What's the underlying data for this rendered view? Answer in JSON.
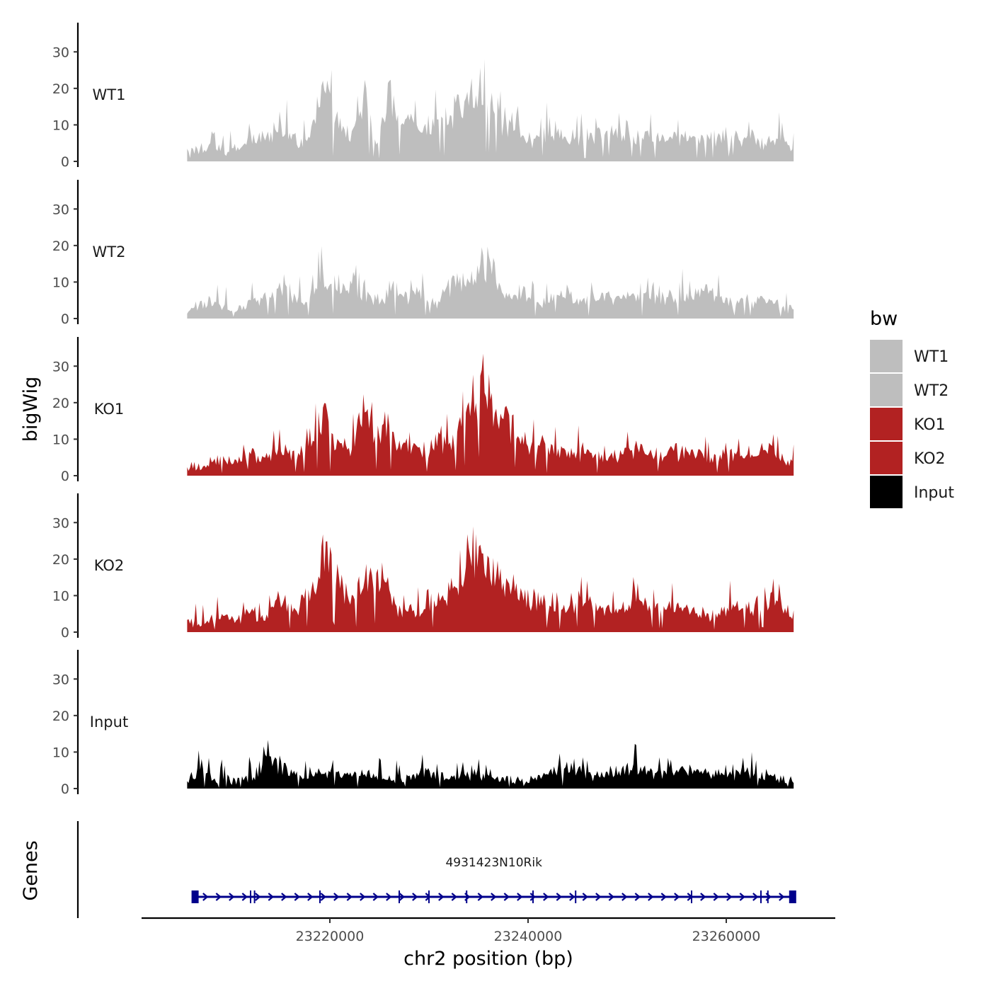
{
  "chart_data": {
    "type": "area",
    "title": "",
    "xlabel": "chr2 position (bp)",
    "ylabel": "bigWig",
    "genes_label": "Genes",
    "xlim": [
      23201000,
      23271000
    ],
    "x_ticks": [
      23220000,
      23240000,
      23260000
    ],
    "x_tick_labels": [
      "23220000",
      "23240000",
      "23260000"
    ],
    "ylim": [
      0,
      38
    ],
    "y_ticks": [
      0,
      10,
      20,
      30
    ],
    "y_tick_labels": [
      "0",
      "10",
      "20",
      "30"
    ],
    "signal_range": [
      23205600,
      23266800
    ],
    "legend": {
      "title": "bw",
      "position": "right",
      "entries": [
        {
          "label": "WT1",
          "color": "#bebebe"
        },
        {
          "label": "WT2",
          "color": "#bebebe"
        },
        {
          "label": "KO1",
          "color": "#b22222"
        },
        {
          "label": "KO2",
          "color": "#b22222"
        },
        {
          "label": "Input",
          "color": "#000000"
        }
      ]
    },
    "series": [
      {
        "name": "WT1",
        "color": "#bebebe",
        "base": 3.5,
        "noise": 5,
        "peaks": [
          [
            23208000,
            3,
            600
          ],
          [
            23212000,
            4,
            800
          ],
          [
            23215000,
            7,
            1200
          ],
          [
            23218500,
            6,
            600
          ],
          [
            23219500,
            16,
            600
          ],
          [
            23221000,
            7,
            1000
          ],
          [
            23223500,
            14,
            600
          ],
          [
            23226000,
            13,
            600
          ],
          [
            23228000,
            7,
            1200
          ],
          [
            23231000,
            9,
            1000
          ],
          [
            23233000,
            10,
            800
          ],
          [
            23235500,
            18,
            1300
          ],
          [
            23238500,
            6,
            800
          ],
          [
            23242000,
            6,
            1500
          ],
          [
            23246000,
            4,
            1500
          ],
          [
            23250000,
            5,
            2000
          ],
          [
            23255000,
            4,
            2000
          ],
          [
            23260000,
            4,
            2000
          ],
          [
            23265000,
            3,
            1500
          ]
        ]
      },
      {
        "name": "WT2",
        "color": "#bebebe",
        "base": 3,
        "noise": 5,
        "peaks": [
          [
            23208000,
            2,
            800
          ],
          [
            23213000,
            3,
            1000
          ],
          [
            23215500,
            6,
            1000
          ],
          [
            23219000,
            9,
            800
          ],
          [
            23221000,
            6,
            800
          ],
          [
            23223000,
            7,
            1000
          ],
          [
            23226500,
            6,
            1000
          ],
          [
            23229000,
            5,
            800
          ],
          [
            23232500,
            7,
            1000
          ],
          [
            23235500,
            14,
            1200
          ],
          [
            23239000,
            5,
            800
          ],
          [
            23243000,
            4,
            1500
          ],
          [
            23248000,
            4,
            2000
          ],
          [
            23253000,
            4,
            2000
          ],
          [
            23258000,
            5,
            1500
          ],
          [
            23263000,
            3,
            1500
          ]
        ]
      },
      {
        "name": "KO1",
        "color": "#b22222",
        "base": 3,
        "noise": 5,
        "peaks": [
          [
            23209000,
            2,
            1000
          ],
          [
            23212000,
            4,
            800
          ],
          [
            23215000,
            5,
            1000
          ],
          [
            23218000,
            7,
            1000
          ],
          [
            23219500,
            11,
            700
          ],
          [
            23221500,
            6,
            600
          ],
          [
            23223500,
            16,
            700
          ],
          [
            23225500,
            11,
            800
          ],
          [
            23228000,
            6,
            1000
          ],
          [
            23231000,
            8,
            1000
          ],
          [
            23233500,
            12,
            800
          ],
          [
            23235500,
            22,
            900
          ],
          [
            23238000,
            11,
            1000
          ],
          [
            23241000,
            6,
            1500
          ],
          [
            23245000,
            4,
            1500
          ],
          [
            23250000,
            4,
            2000
          ],
          [
            23255000,
            4,
            2000
          ],
          [
            23261000,
            4,
            2000
          ],
          [
            23264500,
            4,
            1000
          ]
        ]
      },
      {
        "name": "KO2",
        "color": "#b22222",
        "base": 3,
        "noise": 5,
        "peaks": [
          [
            23209000,
            2,
            1000
          ],
          [
            23212000,
            3,
            800
          ],
          [
            23215000,
            6,
            900
          ],
          [
            23218000,
            7,
            1000
          ],
          [
            23219500,
            16,
            700
          ],
          [
            23221000,
            8,
            700
          ],
          [
            23223500,
            12,
            1100
          ],
          [
            23225500,
            9,
            800
          ],
          [
            23228000,
            4,
            1000
          ],
          [
            23231000,
            7,
            1000
          ],
          [
            23233500,
            14,
            900
          ],
          [
            23235500,
            16,
            1100
          ],
          [
            23238000,
            10,
            1000
          ],
          [
            23241000,
            6,
            1500
          ],
          [
            23245500,
            6,
            1500
          ],
          [
            23250500,
            5,
            2000
          ],
          [
            23255000,
            4,
            2000
          ],
          [
            23261000,
            4,
            2000
          ],
          [
            23264500,
            6,
            1200
          ]
        ]
      },
      {
        "name": "Input",
        "color": "#000000",
        "base": 2.8,
        "noise": 4,
        "peaks": [
          [
            23207000,
            2,
            800
          ],
          [
            23213500,
            4,
            800
          ],
          [
            23215000,
            4,
            1000
          ],
          [
            23219500,
            2,
            1500
          ],
          [
            23223500,
            2,
            1500
          ],
          [
            23230000,
            2,
            1500
          ],
          [
            23235000,
            2,
            1500
          ],
          [
            23244000,
            3,
            1500
          ],
          [
            23250000,
            3,
            2000
          ],
          [
            23256000,
            3,
            2000
          ],
          [
            23262000,
            2,
            2000
          ]
        ]
      }
    ],
    "gene": {
      "name": "4931423N10Rik",
      "color": "#00008b",
      "start": 23206200,
      "end": 23266900,
      "strand": "+",
      "exons": [
        23206400,
        23212000,
        23212400,
        23219000,
        23227000,
        23230000,
        23233800,
        23240500,
        23244800,
        23256500,
        23263500,
        23264200,
        23266700
      ]
    }
  }
}
